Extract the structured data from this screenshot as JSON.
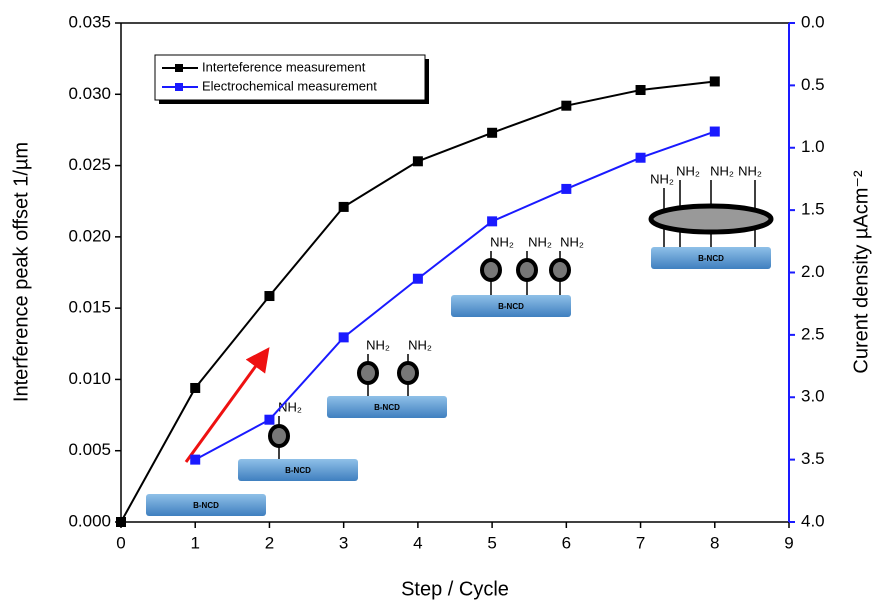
{
  "chart_data": {
    "type": "line",
    "x_label": "Step / Cycle",
    "y_label": "Interference peak offset 1/µm",
    "y2_label": "Curent density µAcm⁻²",
    "x": [
      0,
      1,
      2,
      3,
      4,
      5,
      6,
      7,
      8
    ],
    "series": [
      {
        "name": "Interteference measurement",
        "color": "#000000",
        "values": [
          0,
          0.0094,
          0.01585,
          0.0221,
          0.0253,
          0.0273,
          0.0292,
          0.0303,
          0.0309
        ]
      },
      {
        "name": "Electrochemical measurement",
        "color": "#1a1aff",
        "axis": "y2",
        "values": [
          null,
          3.5,
          3.18,
          2.52,
          2.05,
          1.59,
          1.33,
          1.08,
          0.87
        ]
      }
    ],
    "xlim": [
      0,
      9
    ],
    "xticks": [
      0,
      1,
      2,
      3,
      4,
      5,
      6,
      7,
      8,
      9
    ],
    "ylim": [
      0,
      0.035
    ],
    "yticks": [
      {
        "value": 0,
        "label": "0.000"
      },
      {
        "value": 0.005,
        "label": "0.005"
      },
      {
        "value": 0.01,
        "label": "0.010"
      },
      {
        "value": 0.015,
        "label": "0.015"
      },
      {
        "value": 0.02,
        "label": "0.020"
      },
      {
        "value": 0.025,
        "label": "0.025"
      },
      {
        "value": 0.03,
        "label": "0.030"
      },
      {
        "value": 0.035,
        "label": "0.035"
      }
    ],
    "y2lim": [
      4,
      0
    ],
    "y2ticks": [
      {
        "value": 0,
        "label": "0.0"
      },
      0.5,
      {
        "value": 1,
        "label": "1.0"
      },
      1.5,
      {
        "value": 2,
        "label": "2.0"
      },
      2.5,
      {
        "value": 3,
        "label": "3.0"
      },
      3.5,
      {
        "value": 4,
        "label": "4.0"
      }
    ],
    "substrate_label": "B-NCD",
    "group_label": "NH₂",
    "legend": "upper left"
  }
}
